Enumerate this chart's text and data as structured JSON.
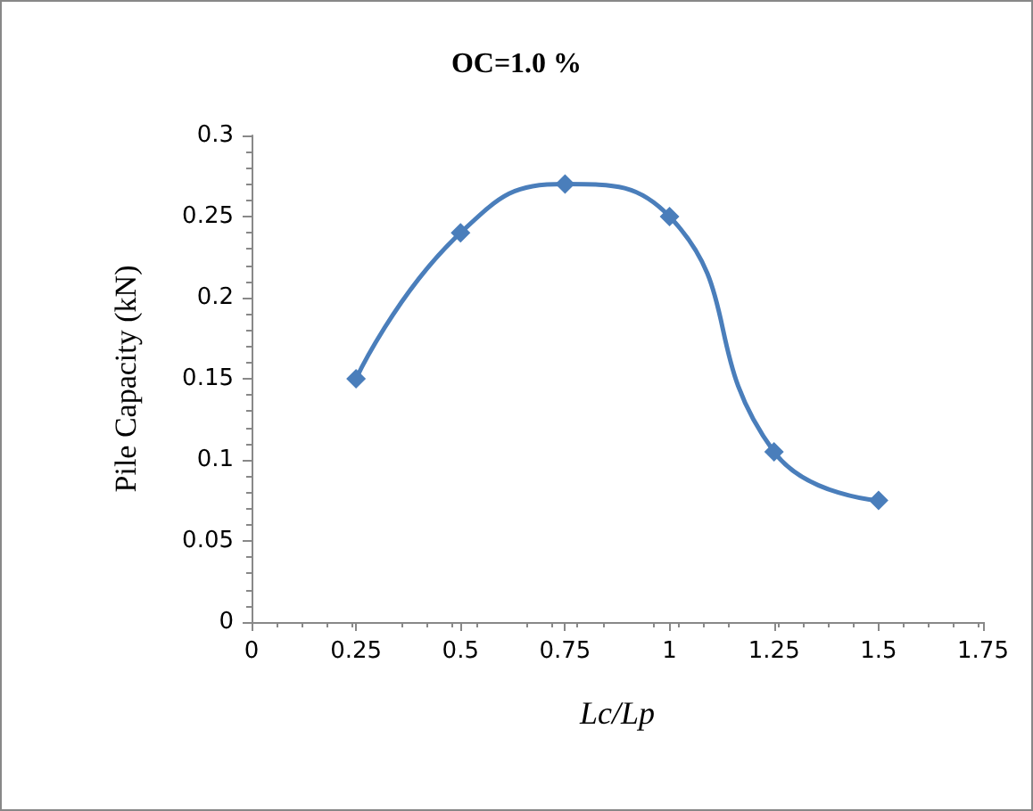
{
  "chart_data": {
    "type": "line",
    "title": "OC=1.0 %",
    "xlabel": "Lc/Lp",
    "ylabel": "Pile Capacity (kN)",
    "x": [
      0.25,
      0.5,
      0.75,
      1,
      1.25,
      1.5
    ],
    "series": [
      {
        "color": "#4a7ebb",
        "values": [
          0.15,
          0.24,
          0.27,
          0.25,
          0.105,
          0.075
        ]
      }
    ],
    "xlim": [
      0,
      1.75
    ],
    "xticks": [
      0,
      0.25,
      0.5,
      0.75,
      1,
      1.25,
      1.5,
      1.75
    ],
    "ylim": [
      0,
      0.3
    ],
    "yticks": [
      0,
      0.05,
      0.1,
      0.15,
      0.2,
      0.25,
      0.3
    ],
    "grid": false,
    "marker": "diamond",
    "line_style": "solid"
  }
}
